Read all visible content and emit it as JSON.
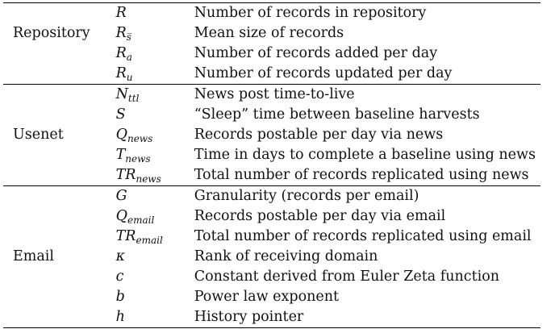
{
  "sections": [
    {
      "group": "Repository",
      "rows": [
        {
          "symbol": "R",
          "subscript": "",
          "description": "Number of records in repository"
        },
        {
          "symbol": "R",
          "subscript": "s̅",
          "description": "Mean size of records"
        },
        {
          "symbol": "R",
          "subscript": "a",
          "description": "Number of records added per day"
        },
        {
          "symbol": "R",
          "subscript": "u",
          "description": "Number of records updated per day"
        }
      ]
    },
    {
      "group": "Usenet",
      "rows": [
        {
          "symbol": "N",
          "subscript": "ttl",
          "description": "News post time-to-live"
        },
        {
          "symbol": "S",
          "subscript": "",
          "description": "“Sleep” time between baseline harvests"
        },
        {
          "symbol": "Q",
          "subscript": "news",
          "description": "Records postable per day via news"
        },
        {
          "symbol": "T",
          "subscript": "news",
          "description": "Time in days to complete a baseline using news"
        },
        {
          "symbol": "TR",
          "subscript": "news",
          "description": "Total number of records replicated using news"
        }
      ]
    },
    {
      "group": "Email",
      "rows": [
        {
          "symbol": "G",
          "subscript": "",
          "description": "Granularity (records per email)"
        },
        {
          "symbol": "Q",
          "subscript": "email",
          "description": "Records postable per day via email"
        },
        {
          "symbol": "TR",
          "subscript": "email",
          "description": "Total number of records replicated using email"
        },
        {
          "symbol": "κ",
          "subscript": "",
          "description": "Rank of receiving domain"
        },
        {
          "symbol": "c",
          "subscript": "",
          "description": "Constant derived from Euler Zeta function"
        },
        {
          "symbol": "b",
          "subscript": "",
          "description": "Power law exponent"
        },
        {
          "symbol": "h",
          "subscript": "",
          "description": "History pointer"
        }
      ]
    }
  ]
}
